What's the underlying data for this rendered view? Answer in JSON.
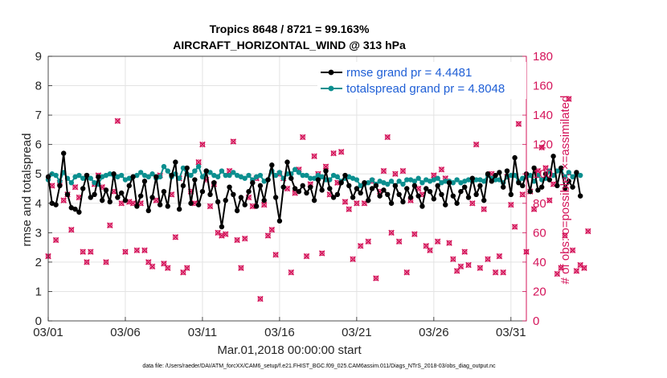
{
  "colors": {
    "rmse": "#000000",
    "spread": "#0b8f8f",
    "obs": "#d4145a",
    "axis": "#262626",
    "grid": "#e3e3e3",
    "legend_rmse_text": "#1f5fd6",
    "legend_spread_text": "#1f5fd6"
  },
  "chart_data": {
    "type": "line",
    "title_line1": "Tropics 8648 / 8721 = 99.163%",
    "title_line2": "AIRCRAFT_HORIZONTAL_WIND @ 313 hPa",
    "xlabel": "Mar.01,2018 00:00:00 start",
    "ylabel_left": "rmse and totalspread",
    "ylabel_right": "# of obs: o=possible; ×=assimilated",
    "xlim": [
      0,
      31
    ],
    "ylim_left": [
      0,
      9
    ],
    "ylim_right": [
      0,
      180
    ],
    "x_ticks": [
      {
        "x": 0,
        "label": "03/01"
      },
      {
        "x": 5,
        "label": "03/06"
      },
      {
        "x": 10,
        "label": "03/11"
      },
      {
        "x": 15,
        "label": "03/16"
      },
      {
        "x": 20,
        "label": "03/21"
      },
      {
        "x": 25,
        "label": "03/26"
      },
      {
        "x": 30,
        "label": "03/31"
      }
    ],
    "y_ticks_left": [
      "0",
      "1",
      "2",
      "3",
      "4",
      "5",
      "6",
      "7",
      "8",
      "9"
    ],
    "y_ticks_right": [
      "0",
      "20",
      "40",
      "60",
      "80",
      "100",
      "120",
      "140",
      "160",
      "180"
    ],
    "legend": {
      "position": "top-right",
      "entries": [
        {
          "label": "rmse grand pr = 4.4481",
          "series": "rmse"
        },
        {
          "label": "totalspread grand pr = 4.8048",
          "series": "spread"
        }
      ]
    },
    "series": [
      {
        "name": "rmse",
        "x_step": 0.25,
        "values": [
          4.9,
          4.0,
          3.95,
          4.6,
          5.7,
          4.3,
          3.85,
          3.8,
          3.7,
          4.5,
          4.95,
          4.2,
          4.3,
          4.9,
          4.1,
          4.45,
          4.05,
          5.0,
          4.2,
          4.35,
          4.1,
          4.6,
          4.9,
          3.9,
          4.25,
          4.75,
          3.75,
          4.2,
          4.9,
          3.95,
          4.4,
          3.9,
          4.95,
          5.4,
          3.8,
          4.6,
          5.2,
          4.0,
          4.8,
          3.95,
          4.4,
          5.1,
          4.3,
          4.7,
          4.05,
          3.2,
          4.1,
          4.55,
          4.3,
          3.75,
          4.2,
          3.95,
          4.4,
          4.7,
          3.9,
          4.6,
          4.1,
          4.8,
          5.3,
          4.2,
          3.4,
          4.55,
          5.4,
          4.85,
          4.5,
          4.4,
          4.6,
          4.35,
          4.55,
          4.1,
          4.8,
          4.45,
          5.1,
          4.5,
          4.2,
          4.3,
          4.7,
          4.95,
          4.6,
          4.2,
          4.5,
          4.35,
          4.7,
          4.1,
          4.5,
          4.6,
          4.25,
          4.45,
          4.3,
          4.0,
          4.6,
          4.3,
          4.05,
          4.5,
          4.2,
          4.6,
          4.25,
          3.9,
          4.5,
          4.4,
          4.15,
          4.6,
          4.3,
          3.95,
          4.7,
          4.25,
          4.0,
          4.4,
          4.55,
          4.2,
          4.85,
          4.3,
          4.6,
          4.1,
          5.0,
          4.75,
          4.95,
          5.05,
          4.55,
          5.1,
          4.3,
          5.55,
          4.7,
          4.6,
          5.0,
          4.4,
          5.2,
          4.45,
          4.55,
          5.0,
          4.8,
          5.6,
          4.6,
          5.2,
          4.5,
          4.75,
          4.55,
          5.05,
          4.25
        ],
        "color_key": "rmse"
      },
      {
        "name": "totalspread",
        "x_step": 0.25,
        "values": [
          4.8,
          5.0,
          4.95,
          4.75,
          5.05,
          4.85,
          4.7,
          4.9,
          4.95,
          4.85,
          4.95,
          4.85,
          4.7,
          4.65,
          4.9,
          4.95,
          5.0,
          4.95,
          4.9,
          4.95,
          4.8,
          4.85,
          4.9,
          4.95,
          5.05,
          4.95,
          4.9,
          5.0,
          4.85,
          4.9,
          5.25,
          5.1,
          4.9,
          5.0,
          4.85,
          5.2,
          5.0,
          4.95,
          5.1,
          5.25,
          4.9,
          5.1,
          5.05,
          4.95,
          4.9,
          5.1,
          4.95,
          4.95,
          5.05,
          4.95,
          4.9,
          4.85,
          4.95,
          4.8,
          4.9,
          4.95,
          4.75,
          4.8,
          5.1,
          4.95,
          5.05,
          4.85,
          5.0,
          5.0,
          5.15,
          5.05,
          4.95,
          4.95,
          4.85,
          4.85,
          4.95,
          4.9,
          4.8,
          4.8,
          4.95,
          4.9,
          4.75,
          4.85,
          4.9,
          4.85,
          4.8,
          4.6,
          4.65,
          4.7,
          4.8,
          4.65,
          4.75,
          4.7,
          4.65,
          4.75,
          4.6,
          4.75,
          4.65,
          4.8,
          4.8,
          4.75,
          4.85,
          4.7,
          4.8,
          4.75,
          4.8,
          4.85,
          4.7,
          4.75,
          4.75,
          4.7,
          4.8,
          4.7,
          4.75,
          4.8,
          4.75,
          4.8,
          4.8,
          4.75,
          4.95,
          4.85,
          4.8,
          4.8,
          4.7,
          4.9,
          4.95,
          4.95,
          4.75,
          4.85,
          4.9,
          4.95,
          4.75,
          4.95,
          4.8,
          4.85,
          5.1,
          4.95,
          5.1,
          5.15,
          4.9,
          5.05,
          4.9,
          5.0,
          4.95
        ],
        "color_key": "spread"
      },
      {
        "name": "obs_count",
        "axis": "right",
        "x_step": 0.25,
        "values": [
          44,
          92,
          55,
          94,
          82,
          86,
          62,
          91,
          84,
          47,
          40,
          47,
          93,
          99,
          91,
          40,
          65,
          88,
          136,
          80,
          47,
          81,
          80,
          48,
          80,
          48,
          40,
          37,
          82,
          99,
          39,
          36,
          86,
          57,
          97,
          33,
          36,
          88,
          80,
          108,
          120,
          96,
          78,
          93,
          60,
          58,
          59,
          102,
          122,
          55,
          36,
          56,
          84,
          78,
          97,
          15,
          79,
          58,
          62,
          45,
          100,
          97,
          90,
          33,
          87,
          103,
          125,
          44,
          93,
          112,
          100,
          46,
          105,
          86,
          114,
          94,
          115,
          81,
          76,
          42,
          80,
          51,
          80,
          54,
          95,
          29,
          88,
          102,
          125,
          60,
          100,
          54,
          102,
          33,
          82,
          59,
          90,
          86,
          51,
          48,
          99,
          54,
          103,
          97,
          53,
          42,
          34,
          37,
          47,
          38,
          80,
          120,
          36,
          76,
          42,
          100,
          33,
          44,
          33,
          98,
          79,
          64,
          134,
          86,
          47,
          88,
          76,
          102,
          118,
          104,
          82,
          93,
          32,
          36,
          58,
          151,
          48,
          34,
          38,
          36,
          61
        ]
      }
    ]
  },
  "footer_text": "data file: /Users/raeder/DAI/ATM_forcXX/CAM6_setup/f.e21.FHIST_BGC.f09_025.CAM6assim.011/Diags_NTrS_2018-03/obs_diag_output.nc"
}
